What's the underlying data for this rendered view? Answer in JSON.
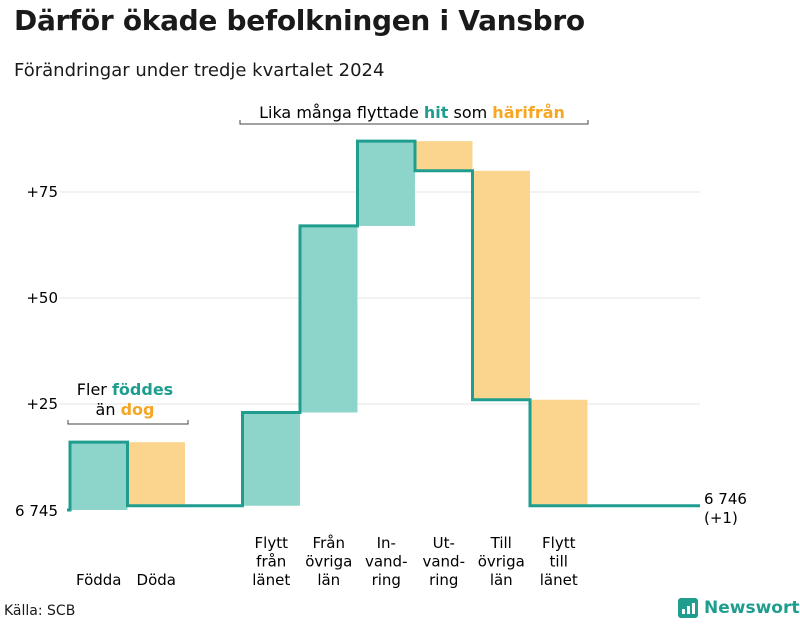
{
  "header": {
    "title": "Därför ökade befolkningen i Vansbro",
    "subtitle": "Förändringar under tredje kvartalet 2024"
  },
  "footer": {
    "source": "Källa: SCB",
    "brand": "Newsworthy"
  },
  "colors": {
    "inflow": "#8dd5cb",
    "outflow": "#fbd58e",
    "line": "#1f9e8f",
    "hit": "#1f9e8f",
    "orange": "#f5a623",
    "grid": "#e5e5e5"
  },
  "chart_data": {
    "type": "waterfall",
    "title": "Därför ökade befolkningen i Vansbro",
    "subtitle": "Förändringar under tredje kvartalet 2024",
    "start_label": "6 745",
    "end_label": [
      "6 746",
      "(+1)"
    ],
    "yticks": [
      "+25",
      "+50",
      "+75"
    ],
    "ytick_values": [
      25,
      50,
      75
    ],
    "ylim": [
      0,
      87
    ],
    "grid": true,
    "steps": [
      {
        "label": [
          "Födda"
        ],
        "value": 16,
        "kind": "in"
      },
      {
        "label": [
          "Döda"
        ],
        "value": -15,
        "kind": "out"
      },
      {
        "label": [],
        "value": 0,
        "kind": "gap"
      },
      {
        "label": [
          "Flytt",
          "från",
          "länet"
        ],
        "value": 22,
        "kind": "in"
      },
      {
        "label": [
          "Från",
          "övriga",
          "län"
        ],
        "value": 44,
        "kind": "in"
      },
      {
        "label": [
          "In-",
          "vand-",
          "ring"
        ],
        "value": 20,
        "kind": "in"
      },
      {
        "label": [
          "Ut-",
          "vand-",
          "ring"
        ],
        "value": -7,
        "kind": "out"
      },
      {
        "label": [
          "Till",
          "övriga",
          "län"
        ],
        "value": -54,
        "kind": "out"
      },
      {
        "label": [
          "Flytt",
          "till",
          "länet"
        ],
        "value": -25,
        "kind": "out"
      }
    ],
    "annotations": {
      "births": {
        "pre": "Fler ",
        "in": "föddes",
        "mid": "än ",
        "out": "dog"
      },
      "migration": {
        "pre": "Lika många flyttade ",
        "in": "hit",
        "mid": " som ",
        "out": "härifrån"
      }
    }
  }
}
